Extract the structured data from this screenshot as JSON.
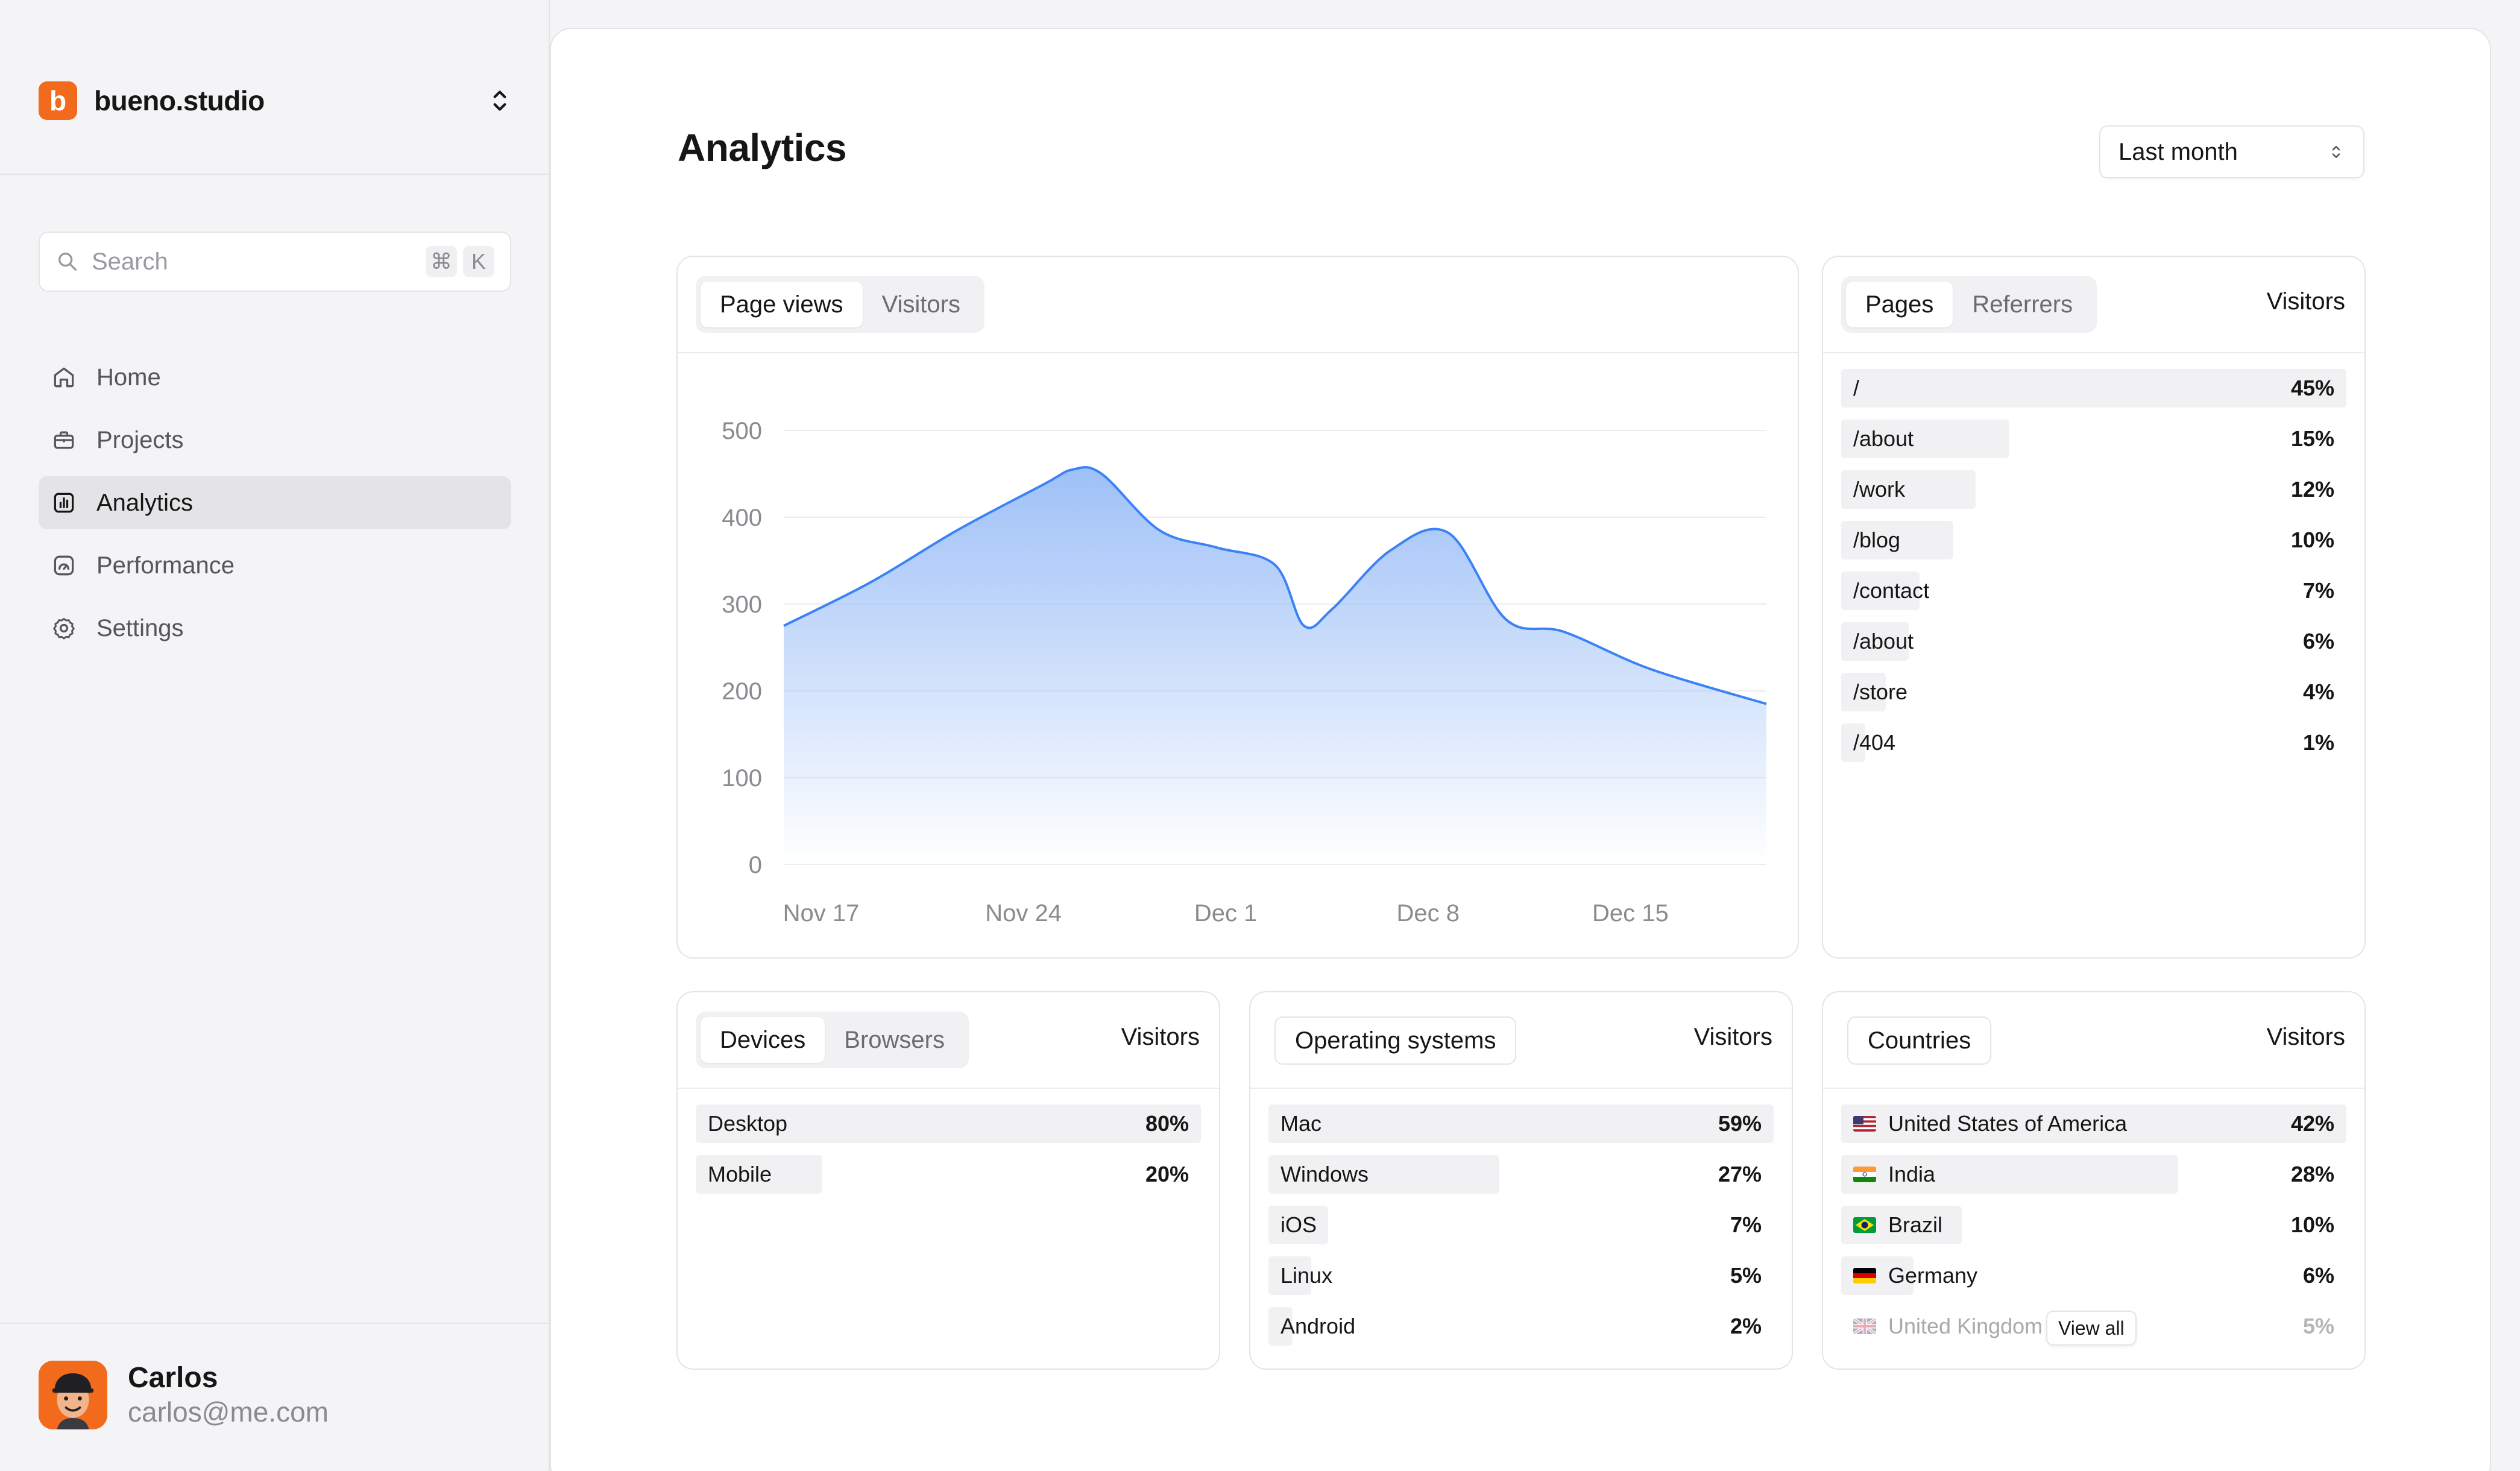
{
  "sidebar": {
    "brand": {
      "logo_letter": "b",
      "name": "bueno.studio"
    },
    "search": {
      "placeholder": "Search",
      "shortcut_keys": [
        "⌘",
        "K"
      ]
    },
    "nav": [
      {
        "label": "Home",
        "icon": "home-icon",
        "active": false
      },
      {
        "label": "Projects",
        "icon": "briefcase-icon",
        "active": false
      },
      {
        "label": "Analytics",
        "icon": "bar-chart-icon",
        "active": true
      },
      {
        "label": "Performance",
        "icon": "gauge-icon",
        "active": false
      },
      {
        "label": "Settings",
        "icon": "gear-icon",
        "active": false
      }
    ],
    "user": {
      "name": "Carlos",
      "email": "carlos@me.com"
    }
  },
  "main": {
    "title": "Analytics",
    "range_select": {
      "value": "Last month"
    },
    "traffic_card": {
      "tabs": [
        {
          "label": "Page views",
          "active": true
        },
        {
          "label": "Visitors",
          "active": false
        }
      ]
    },
    "pages_card": {
      "tabs": [
        {
          "label": "Pages",
          "active": true
        },
        {
          "label": "Referrers",
          "active": false
        }
      ],
      "column": "Visitors",
      "rows": [
        {
          "label": "/",
          "value": "45%",
          "share": 0.45
        },
        {
          "label": "/about",
          "value": "15%",
          "share": 0.15
        },
        {
          "label": "/work",
          "value": "12%",
          "share": 0.12
        },
        {
          "label": "/blog",
          "value": "10%",
          "share": 0.1
        },
        {
          "label": "/contact",
          "value": "7%",
          "share": 0.07
        },
        {
          "label": "/about",
          "value": "6%",
          "share": 0.06
        },
        {
          "label": "/store",
          "value": "4%",
          "share": 0.04
        },
        {
          "label": "/404",
          "value": "1%",
          "share": 0.01
        }
      ]
    },
    "devices_card": {
      "tabs": [
        {
          "label": "Devices",
          "active": true
        },
        {
          "label": "Browsers",
          "active": false
        }
      ],
      "column": "Visitors",
      "rows": [
        {
          "label": "Desktop",
          "value": "80%",
          "share": 0.8
        },
        {
          "label": "Mobile",
          "value": "20%",
          "share": 0.2
        }
      ]
    },
    "os_card": {
      "title": "Operating systems",
      "column": "Visitors",
      "rows": [
        {
          "label": "Mac",
          "value": "59%",
          "share": 0.59
        },
        {
          "label": "Windows",
          "value": "27%",
          "share": 0.27
        },
        {
          "label": "iOS",
          "value": "7%",
          "share": 0.07
        },
        {
          "label": "Linux",
          "value": "5%",
          "share": 0.05
        },
        {
          "label": "Android",
          "value": "2%",
          "share": 0.02
        }
      ]
    },
    "countries_card": {
      "title": "Countries",
      "column": "Visitors",
      "view_all": "View all",
      "rows": [
        {
          "label": "United States of America",
          "value": "42%",
          "share": 0.42,
          "flag": "us-flag-icon"
        },
        {
          "label": "India",
          "value": "28%",
          "share": 0.28,
          "flag": "india-flag-icon"
        },
        {
          "label": "Brazil",
          "value": "10%",
          "share": 0.1,
          "flag": "brazil-flag-icon"
        },
        {
          "label": "Germany",
          "value": "6%",
          "share": 0.06,
          "flag": "germany-flag-icon"
        },
        {
          "label": "United Kingdom",
          "value": "5%",
          "share": 0.05,
          "flag": "uk-flag-icon"
        }
      ]
    }
  },
  "colors": {
    "accent": "#f26b1d",
    "line": "#3b82f6",
    "area_top": "#9ec0f7",
    "bar_fill": "#f1f1f3"
  },
  "chart_data": {
    "type": "area",
    "title": "",
    "xlabel": "",
    "ylabel": "",
    "ylim": [
      0,
      500
    ],
    "yticks": [
      0,
      100,
      200,
      300,
      400,
      500
    ],
    "xtick_labels": [
      "Nov 17",
      "Nov 24",
      "Dec 1",
      "Dec 8",
      "Dec 15"
    ],
    "x_start": "Nov 17",
    "x_end": "Dec 21",
    "grid": true,
    "series": [
      {
        "values": [
          {
            "date": "Nov 17",
            "value": 275
          },
          {
            "date": "Nov 20",
            "value": 325
          },
          {
            "date": "Nov 23",
            "value": 385
          },
          {
            "date": "Nov 26",
            "value": 438
          },
          {
            "date": "Nov 27",
            "value": 455
          },
          {
            "date": "Nov 28",
            "value": 450
          },
          {
            "date": "Nov 30",
            "value": 385
          },
          {
            "date": "Dec 2",
            "value": 365
          },
          {
            "date": "Dec 4",
            "value": 345
          },
          {
            "date": "Dec 5",
            "value": 275
          },
          {
            "date": "Dec 6",
            "value": 295
          },
          {
            "date": "Dec 8",
            "value": 362
          },
          {
            "date": "Dec 10",
            "value": 382
          },
          {
            "date": "Dec 12",
            "value": 282
          },
          {
            "date": "Dec 14",
            "value": 268
          },
          {
            "date": "Dec 17",
            "value": 225
          },
          {
            "date": "Dec 21",
            "value": 185
          }
        ]
      }
    ]
  }
}
